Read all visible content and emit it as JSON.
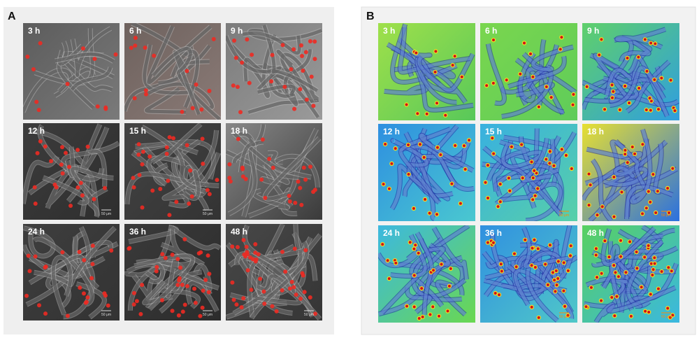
{
  "panels": [
    {
      "label": "A",
      "tiles": [
        {
          "time": "3 h"
        },
        {
          "time": "6 h"
        },
        {
          "time": "9 h"
        },
        {
          "time": "12 h",
          "scale": "50 μm"
        },
        {
          "time": "15 h",
          "scale": "50 μm"
        },
        {
          "time": "18 h"
        },
        {
          "time": "24 h",
          "scale": "50 μm"
        },
        {
          "time": "36 h",
          "scale": "50 μm"
        },
        {
          "time": "48 h",
          "scale": "50 μm"
        }
      ]
    },
    {
      "label": "B",
      "tiles": [
        {
          "time": "3 h"
        },
        {
          "time": "6 h"
        },
        {
          "time": "9 h"
        },
        {
          "time": "12 h"
        },
        {
          "time": "15 h",
          "scale": "50 μm"
        },
        {
          "time": "18 h",
          "scale": "50 μm"
        },
        {
          "time": "24 h"
        },
        {
          "time": "36 h",
          "scale": "50 μm"
        },
        {
          "time": "48 h",
          "scale": "50 μm"
        }
      ]
    }
  ]
}
